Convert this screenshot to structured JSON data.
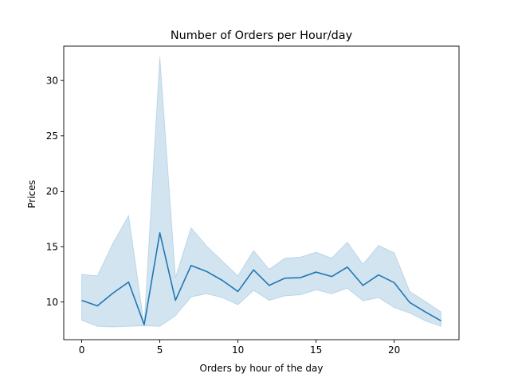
{
  "chart_data": {
    "type": "line",
    "title": "Number of Orders per Hour/day",
    "xlabel": "Orders by hour of the day",
    "ylabel": "Prices",
    "xlim": [
      -1.15,
      24.15
    ],
    "ylim": [
      6.6,
      33.1
    ],
    "xticks": [
      0,
      5,
      10,
      15,
      20
    ],
    "yticks": [
      10,
      15,
      20,
      25,
      30
    ],
    "grid": false,
    "legend": "none",
    "series": [
      {
        "color": "#1f77b4",
        "band_color": "#1f77b4",
        "x": [
          0,
          1,
          2,
          3,
          4,
          5,
          6,
          7,
          8,
          9,
          10,
          11,
          12,
          13,
          14,
          15,
          16,
          17,
          18,
          19,
          20,
          21,
          22,
          23
        ],
        "y": [
          10.15,
          9.65,
          10.8,
          11.8,
          7.95,
          16.25,
          10.15,
          13.3,
          12.75,
          11.95,
          10.95,
          12.9,
          11.5,
          12.15,
          12.2,
          12.7,
          12.3,
          13.15,
          11.5,
          12.45,
          11.75,
          9.95,
          9.1,
          8.3
        ],
        "ci_lower": [
          8.35,
          7.8,
          7.75,
          7.8,
          7.85,
          7.8,
          8.75,
          10.45,
          10.75,
          10.4,
          9.75,
          11.05,
          10.15,
          10.55,
          10.65,
          11.1,
          10.75,
          11.25,
          10.1,
          10.4,
          9.5,
          9.0,
          8.3,
          7.8
        ],
        "ci_upper": [
          12.5,
          12.35,
          15.3,
          17.8,
          7.95,
          32.15,
          12.2,
          16.7,
          15.05,
          13.7,
          12.35,
          14.65,
          12.95,
          13.95,
          14.05,
          14.5,
          13.95,
          15.4,
          13.4,
          15.1,
          14.45,
          10.95,
          10.05,
          9.1
        ]
      }
    ]
  }
}
